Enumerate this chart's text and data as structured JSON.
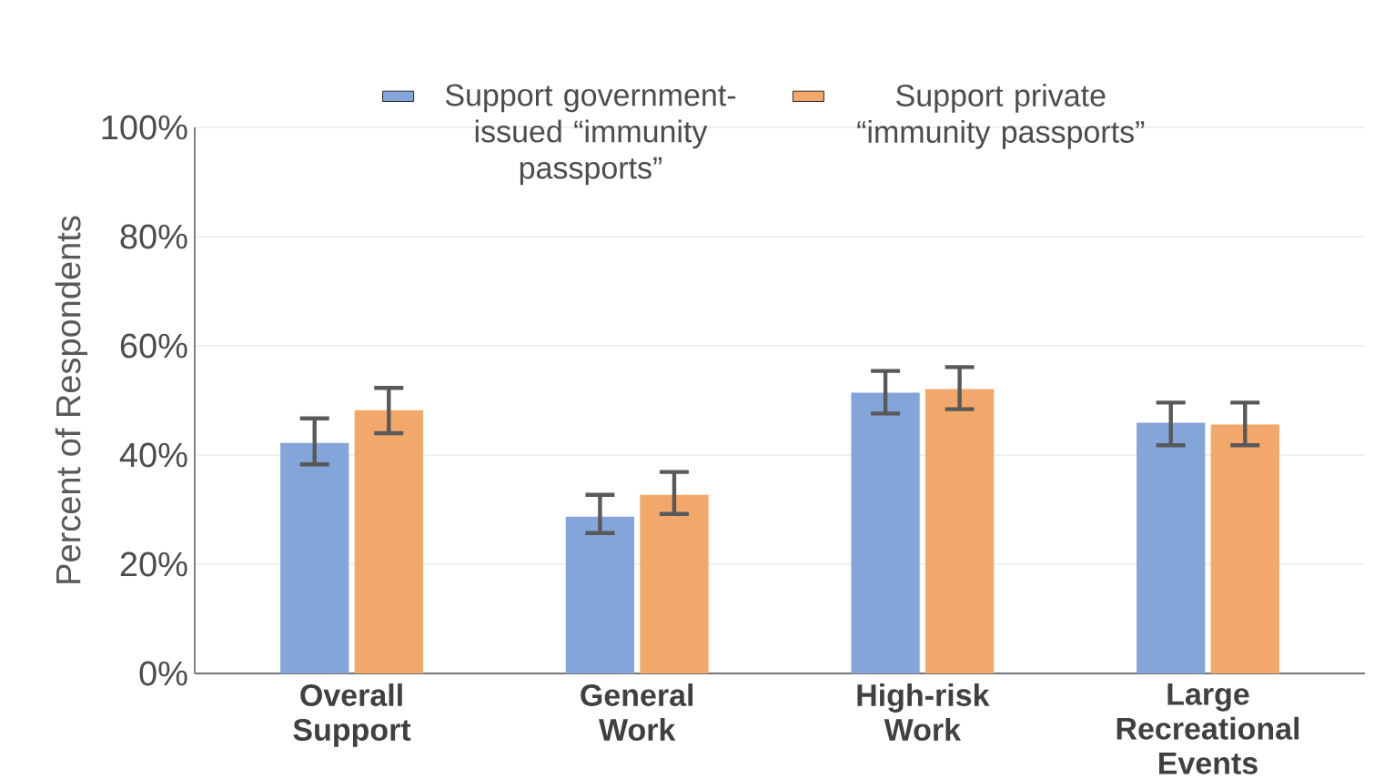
{
  "chart_data": {
    "type": "bar",
    "ylabel": "Percent of Respondents",
    "categories": [
      "Overall Support",
      "General Work",
      "High-risk Work",
      "Large Recreational Events"
    ],
    "series": [
      {
        "name": "Support government-issued “immunity passports”",
        "color": "#83a5d9",
        "values": [
          42.2,
          28.7,
          51.4,
          45.9
        ],
        "errors": [
          [
            38.3,
            46.7
          ],
          [
            25.7,
            32.7
          ],
          [
            47.6,
            55.4
          ],
          [
            41.8,
            49.6
          ]
        ]
      },
      {
        "name": "Support private “immunity passports”",
        "color": "#f2a86a",
        "values": [
          48.2,
          32.7,
          52.1,
          45.6
        ],
        "errors": [
          [
            44.0,
            52.3
          ],
          [
            29.2,
            36.9
          ],
          [
            48.4,
            56.1
          ],
          [
            41.8,
            49.6
          ]
        ]
      }
    ],
    "ylim": [
      0,
      100
    ],
    "yticks": [
      {
        "value": 0,
        "label": "0%"
      },
      {
        "value": 20,
        "label": "20%"
      },
      {
        "value": 40,
        "label": "40%"
      },
      {
        "value": 60,
        "label": "60%"
      },
      {
        "value": 80,
        "label": "80%"
      },
      {
        "value": 100,
        "label": "100%"
      }
    ],
    "grid": "y",
    "legend": "top"
  }
}
